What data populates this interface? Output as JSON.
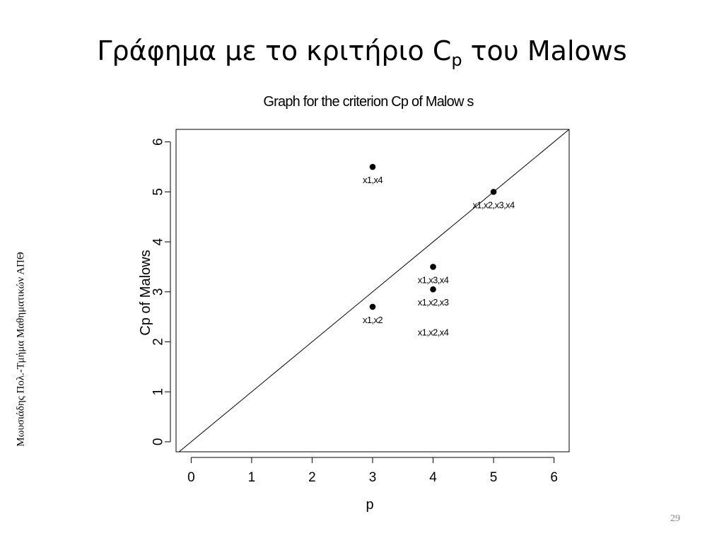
{
  "slide": {
    "title_main": "Γράφημα με το κριτήριο C",
    "title_sub": "p",
    "title_end": " του Malows",
    "side_credit": "Μωυσιάδης Πολ.-Τμήμα Μαθηματικών ΑΠΘ",
    "page_number": "29"
  },
  "chart_data": {
    "type": "scatter",
    "title": "Graph for the criterion Cp of Malow s",
    "xlabel": "p",
    "ylabel": "Cp of Malows",
    "xlim": [
      -0.25,
      6.25
    ],
    "ylim": [
      -0.2,
      6.25
    ],
    "x_ticks": [
      0,
      1,
      2,
      3,
      4,
      5,
      6
    ],
    "y_ticks": [
      0,
      1,
      2,
      3,
      4,
      5,
      6
    ],
    "grid": false,
    "reference_line": "Cp = p",
    "points": [
      {
        "label": "x1,x4",
        "x": 3,
        "y": 5.5
      },
      {
        "label": "x1,x2,x3,x4",
        "x": 5,
        "y": 5.0
      },
      {
        "label": "x1,x3,x4",
        "x": 4,
        "y": 3.5
      },
      {
        "label": "x1,x2,x3",
        "x": 4,
        "y": 3.05
      },
      {
        "label": "x1,x2",
        "x": 3,
        "y": 2.7
      }
    ],
    "extra_labels": [
      {
        "text": "x1,x2,x4",
        "x": 4,
        "y": 2.45
      }
    ],
    "marker_color": "#000000"
  }
}
